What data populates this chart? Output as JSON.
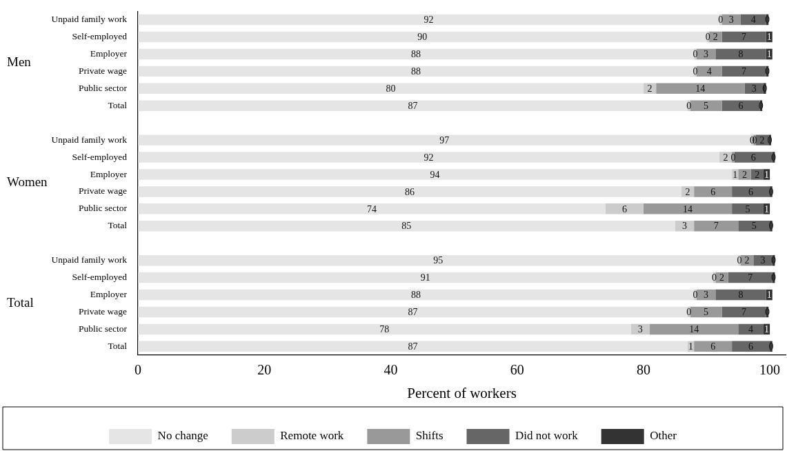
{
  "chart_data": {
    "type": "bar",
    "orientation": "horizontal",
    "stacked": true,
    "legend": "bottom",
    "grid": false,
    "xlabel": "Percent of workers",
    "xlim": [
      0,
      102.5
    ],
    "xticks": [
      0,
      20,
      40,
      60,
      80,
      100
    ],
    "annotations": [
      "Men",
      "Women",
      "Total"
    ],
    "categories": [
      "Unpaid family work",
      "Self-employed",
      "Employer",
      "Private wage",
      "Public sector",
      "Total",
      null,
      "Unpaid family work",
      "Self-employed",
      "Employer",
      "Private wage",
      "Public sector",
      "Total",
      null,
      "Unpaid family work",
      "Self-employed",
      "Employer",
      "Private wage",
      "Public sector",
      "Total"
    ],
    "series": [
      {
        "name": "No change",
        "color": "#e5e5e5",
        "values": [
          92,
          90,
          88,
          88,
          80,
          87,
          null,
          97,
          92,
          94,
          86,
          74,
          85,
          null,
          95,
          91,
          88,
          87,
          78,
          87
        ],
        "value_labels": [
          "92",
          "90",
          "88",
          "88",
          "80",
          "87",
          null,
          "97",
          "92",
          "94",
          "86",
          "74",
          "85",
          null,
          "95",
          "91",
          "88",
          "87",
          "78",
          "87"
        ]
      },
      {
        "name": "Remote work",
        "color": "#cccccc",
        "values": [
          0.4,
          0.4,
          0.4,
          0.4,
          2,
          0.4,
          null,
          0.4,
          2,
          1,
          2,
          6,
          3,
          null,
          0.4,
          0.4,
          0.4,
          0.4,
          3,
          1
        ],
        "value_labels": [
          "0",
          "0",
          "0",
          "0",
          "2",
          "0",
          null,
          "0",
          "2",
          "1",
          "2",
          "6",
          "3",
          null,
          "0",
          "0",
          "0",
          "0",
          "3",
          "1"
        ]
      },
      {
        "name": "Shifts",
        "color": "#999999",
        "values": [
          3,
          2,
          3,
          4,
          14,
          5,
          null,
          0.4,
          0.4,
          2,
          6,
          14,
          7,
          null,
          2,
          2,
          3,
          5,
          14,
          6
        ],
        "value_labels": [
          "3",
          "2",
          "3",
          "4",
          "14",
          "5",
          null,
          "0",
          "0",
          "2",
          "6",
          "14",
          "7",
          null,
          "2",
          "2",
          "3",
          "5",
          "14",
          "6"
        ]
      },
      {
        "name": "Did not work",
        "color": "#666666",
        "values": [
          4,
          7,
          8,
          7,
          3,
          6,
          null,
          2,
          6,
          2,
          6,
          5,
          5,
          null,
          3,
          7,
          8,
          7,
          4,
          6
        ],
        "value_labels": [
          "4",
          "7",
          "8",
          "7",
          "3",
          "6",
          null,
          "2",
          "6",
          "2",
          "6",
          "5",
          "5",
          null,
          "3",
          "7",
          "8",
          "7",
          "4",
          "6"
        ]
      },
      {
        "name": "Other",
        "color": "#333333",
        "values": [
          0.4,
          1,
          1,
          0.4,
          0.4,
          0.4,
          null,
          0.4,
          0.4,
          1,
          0.4,
          1,
          0.4,
          null,
          0.4,
          0.4,
          1,
          0.4,
          1,
          0.4
        ],
        "value_labels": [
          "0",
          "1",
          "1",
          "0",
          "0",
          "0",
          null,
          "0",
          "0",
          "1",
          "0",
          "1",
          "0",
          null,
          "0",
          "0",
          "1",
          "0",
          "1",
          "0"
        ]
      }
    ]
  }
}
